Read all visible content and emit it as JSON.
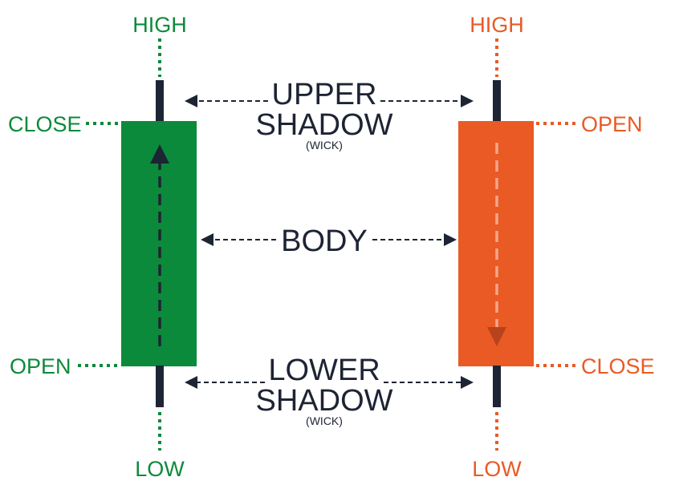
{
  "colors": {
    "bullish": "#0b8a3b",
    "bearish": "#ea5a24",
    "wick": "#1d2433",
    "text_dark": "#1d2433"
  },
  "bullish_candle": {
    "high_label": "HIGH",
    "close_label": "CLOSE",
    "open_label": "OPEN",
    "low_label": "LOW",
    "direction": "up"
  },
  "bearish_candle": {
    "high_label": "HIGH",
    "open_label": "OPEN",
    "close_label": "CLOSE",
    "low_label": "LOW",
    "direction": "down"
  },
  "middle_labels": {
    "upper_shadow_line1": "UPPER",
    "upper_shadow_line2": "SHADOW",
    "upper_shadow_note": "(WICK)",
    "body": "BODY",
    "lower_shadow_line1": "LOWER",
    "lower_shadow_line2": "SHADOW",
    "lower_shadow_note": "(WICK)"
  }
}
